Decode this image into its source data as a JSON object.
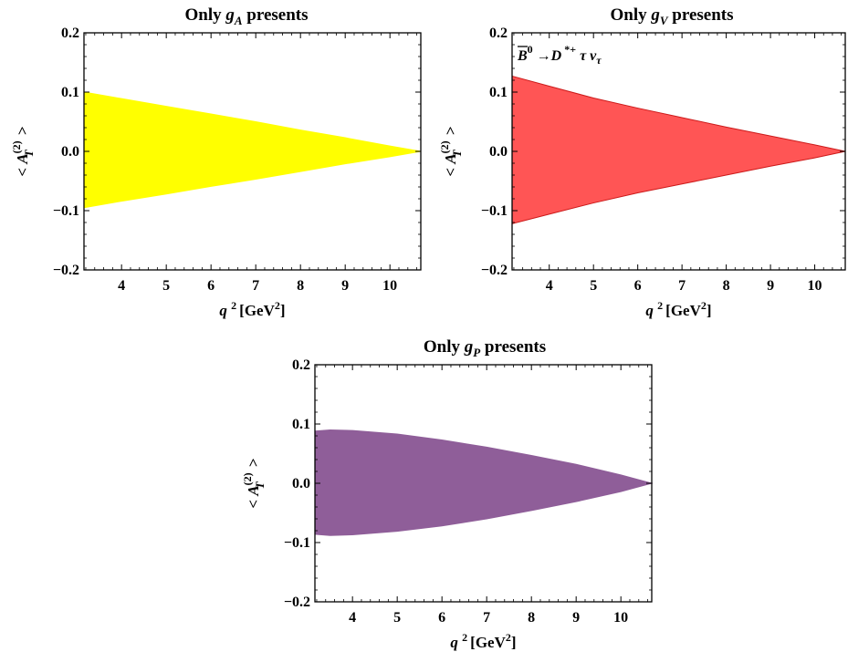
{
  "chart_data": [
    {
      "type": "area",
      "id": "ga",
      "title": {
        "prefix": "Only ",
        "var": "g",
        "sub": "A",
        "suffix": " presents"
      },
      "xlabel": {
        "var": "q",
        "sup": "2",
        "unit": "[GeV",
        "unit_sup": "2",
        "close": "]"
      },
      "ylabel": {
        "open": "< ",
        "var": "A",
        "sub": "T",
        "sup": "(2)",
        "close": " >"
      },
      "xlim": [
        3.16,
        10.69
      ],
      "ylim": [
        -0.2,
        0.2
      ],
      "xticks": [
        4,
        5,
        6,
        7,
        8,
        9,
        10
      ],
      "yticks": [
        -0.2,
        -0.1,
        0.0,
        0.1,
        0.2
      ],
      "ytick_labels": [
        "−0.2",
        "−0.1",
        "0.0",
        "0.1",
        "0.2"
      ],
      "fill_color": "#ffff00",
      "edge_color": "#ffff00",
      "annotation": null,
      "series": [
        {
          "x": [
            3.16,
            4,
            5,
            6,
            7,
            8,
            9,
            10,
            10.69
          ],
          "upper": [
            0.1,
            0.089,
            0.076,
            0.063,
            0.05,
            0.036,
            0.023,
            0.009,
            0.0
          ],
          "lower": [
            -0.095,
            -0.084,
            -0.072,
            -0.059,
            -0.047,
            -0.034,
            -0.021,
            -0.009,
            0.0
          ]
        }
      ]
    },
    {
      "type": "area",
      "id": "gv",
      "title": {
        "prefix": "Only ",
        "var": "g",
        "sub": "V",
        "suffix": " presents"
      },
      "xlabel": {
        "var": "q",
        "sup": "2",
        "unit": "[GeV",
        "unit_sup": "2",
        "close": "]"
      },
      "ylabel": {
        "open": "< ",
        "var": "A",
        "sub": "T",
        "sup": "(2)",
        "close": " >"
      },
      "xlim": [
        3.16,
        10.69
      ],
      "ylim": [
        -0.2,
        0.2
      ],
      "xticks": [
        4,
        5,
        6,
        7,
        8,
        9,
        10
      ],
      "yticks": [
        -0.2,
        -0.1,
        0.0,
        0.1,
        0.2
      ],
      "ytick_labels": [
        "−0.2",
        "−0.1",
        "0.0",
        "0.1",
        "0.2"
      ],
      "fill_color": "#ff5555",
      "edge_color": "#cc1a1a",
      "annotation": {
        "b": "B",
        "bsup": "0",
        "arrow": " →",
        "d": "D",
        "dsup": " *+",
        "rest": " τ ν",
        "nusub": "τ"
      },
      "series": [
        {
          "x": [
            3.16,
            4,
            5,
            6,
            7,
            8,
            9,
            10,
            10.69
          ],
          "upper": [
            0.127,
            0.11,
            0.09,
            0.073,
            0.057,
            0.041,
            0.026,
            0.011,
            0.0
          ],
          "lower": [
            -0.122,
            -0.106,
            -0.087,
            -0.07,
            -0.055,
            -0.04,
            -0.025,
            -0.011,
            0.0
          ]
        }
      ]
    },
    {
      "type": "area",
      "id": "gp",
      "title": {
        "prefix": "Only ",
        "var": "g",
        "sub": "P",
        "suffix": " presents"
      },
      "xlabel": {
        "var": "q",
        "sup": "2",
        "unit": "[GeV",
        "unit_sup": "2",
        "close": "]"
      },
      "ylabel": {
        "open": "< ",
        "var": "A",
        "sub": "T",
        "sup": "(2)",
        "close": " >"
      },
      "xlim": [
        3.16,
        10.69
      ],
      "ylim": [
        -0.2,
        0.2
      ],
      "xticks": [
        4,
        5,
        6,
        7,
        8,
        9,
        10
      ],
      "yticks": [
        -0.2,
        -0.1,
        0.0,
        0.1,
        0.2
      ],
      "ytick_labels": [
        "−0.2",
        "−0.1",
        "0.0",
        "0.1",
        "0.2"
      ],
      "fill_color": "#8f5e99",
      "edge_color": "#8f5e99",
      "annotation": null,
      "series": [
        {
          "x": [
            3.16,
            3.5,
            4,
            5,
            6,
            7,
            8,
            9,
            10,
            10.69
          ],
          "upper": [
            0.088,
            0.09,
            0.089,
            0.083,
            0.073,
            0.061,
            0.047,
            0.032,
            0.014,
            0.0
          ],
          "lower": [
            -0.086,
            -0.088,
            -0.087,
            -0.081,
            -0.072,
            -0.06,
            -0.046,
            -0.031,
            -0.014,
            0.0
          ]
        }
      ]
    }
  ]
}
